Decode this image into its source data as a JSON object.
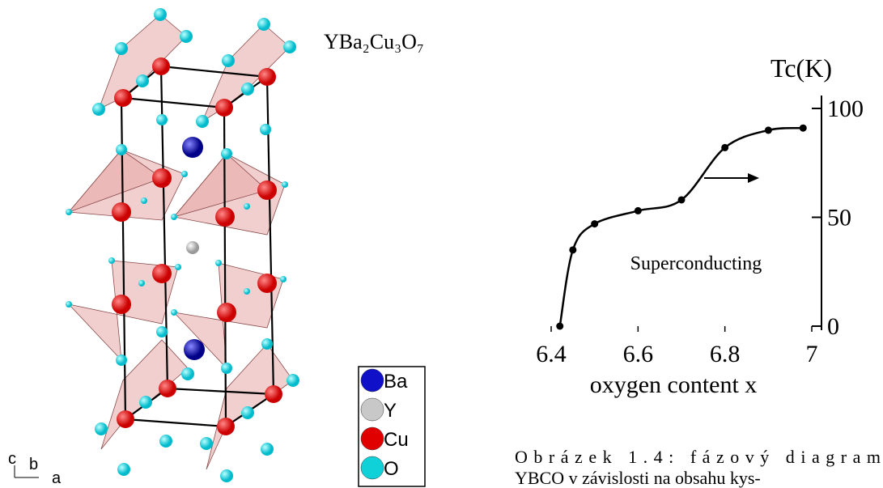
{
  "structure": {
    "formula": "YBa₂Cu₃O₇",
    "legend": [
      {
        "label": "Ba",
        "color": "#1010c8"
      },
      {
        "label": "Y",
        "color": "#c8c8c8"
      },
      {
        "label": "Cu",
        "color": "#e00000"
      },
      {
        "label": "O",
        "color": "#10d0d8"
      }
    ],
    "axes": [
      "c",
      "b",
      "a"
    ]
  },
  "chart_data": {
    "type": "line",
    "ylabel": "Tc(K)",
    "xlabel": "oxygen content x",
    "annotation": "Superconducting",
    "x": [
      6.42,
      6.45,
      6.5,
      6.6,
      6.7,
      6.8,
      6.9,
      6.98
    ],
    "values": [
      0,
      35,
      47,
      53,
      58,
      82,
      90,
      91
    ],
    "color": "#000000",
    "xlim": [
      6.4,
      7
    ],
    "xticks": [
      6.4,
      6.6,
      6.8,
      7
    ],
    "ylim": [
      0,
      100
    ],
    "yticks": [
      0,
      50,
      100
    ]
  },
  "caption": [
    "Obrázek 1.4: fázový diagram",
    "YBCO v závislosti na obsahu kys-"
  ]
}
